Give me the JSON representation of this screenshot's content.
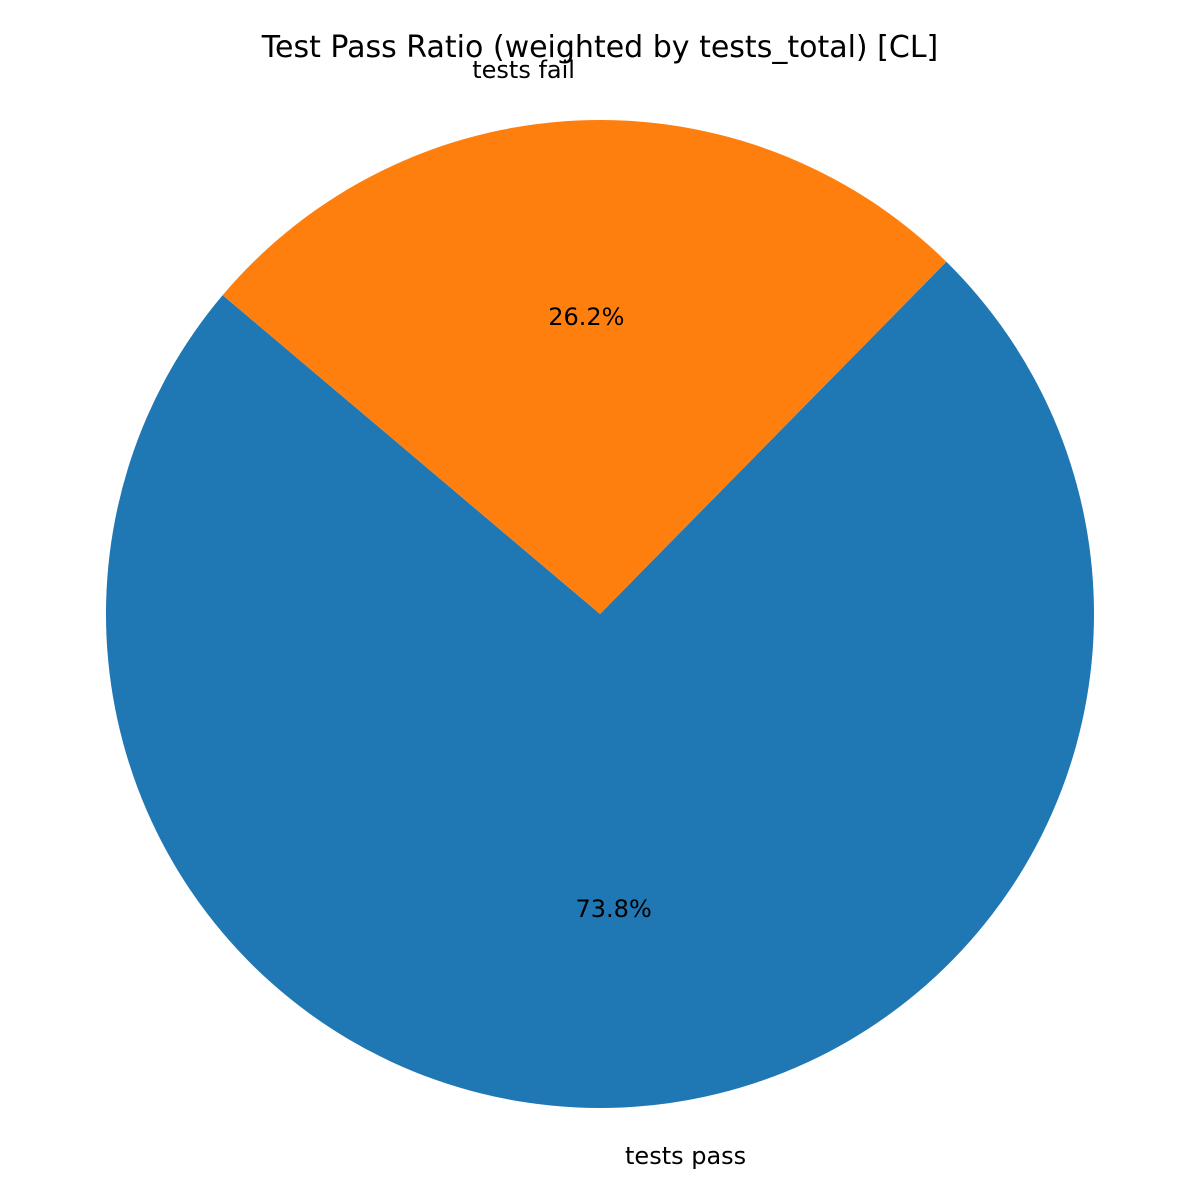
{
  "chart_data": {
    "type": "pie",
    "title": "Test Pass Ratio (weighted by tests_total) [CL]",
    "start_angle_deg": 139.8,
    "direction": "counterclockwise",
    "slices": [
      {
        "label": "tests pass",
        "value": 73.8,
        "pct_label": "73.8%",
        "color": "#1f77b4"
      },
      {
        "label": "tests fail",
        "value": 26.2,
        "pct_label": "26.2%",
        "color": "#ff7f0e"
      }
    ]
  }
}
